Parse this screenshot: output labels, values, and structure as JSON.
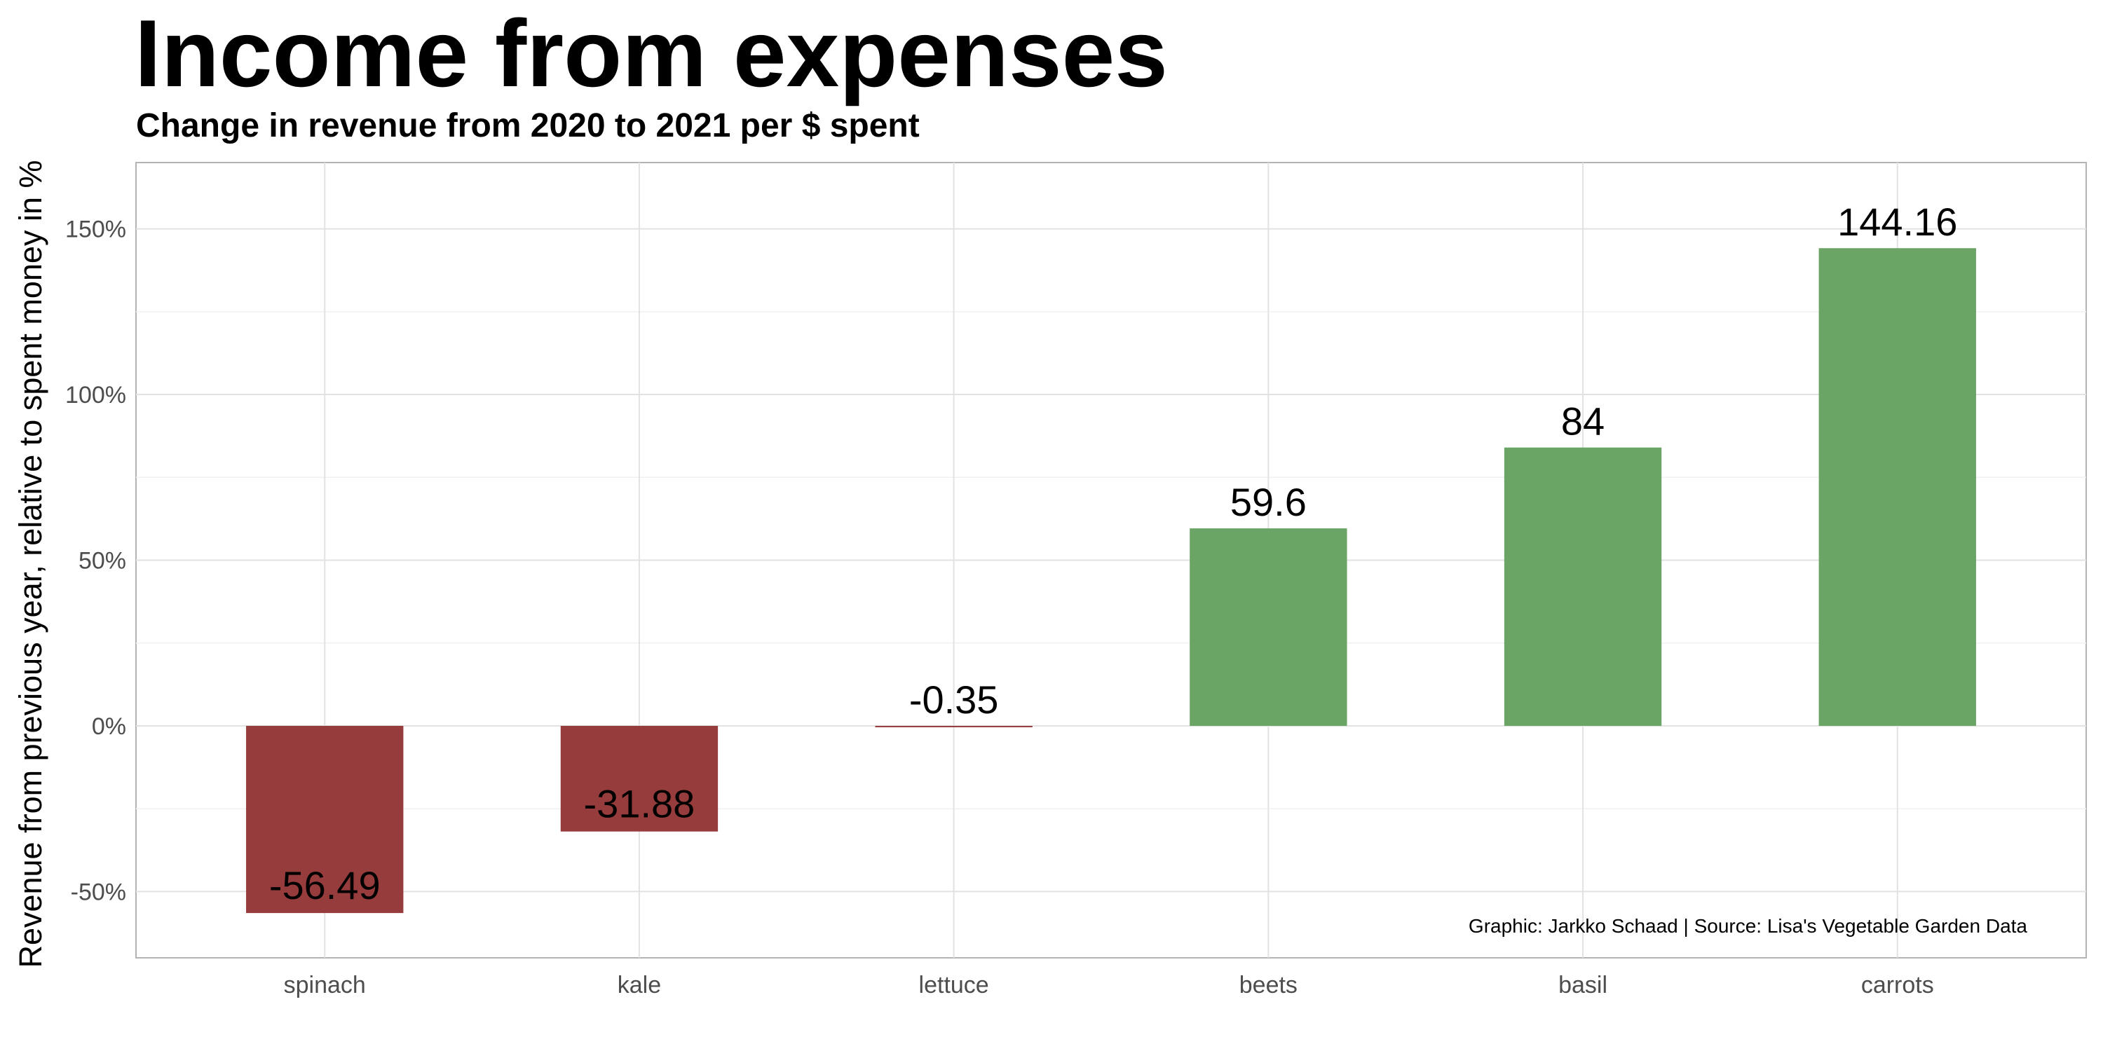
{
  "chart_data": {
    "type": "bar",
    "title": "Income from expenses",
    "subtitle": "Change in revenue from 2020 to 2021 per $ spent",
    "xlabel": "",
    "ylabel": "Revenue from previous year, relative to spent money in %",
    "categories": [
      "spinach",
      "kale",
      "lettuce",
      "beets",
      "basil",
      "carrots"
    ],
    "values": [
      -56.49,
      -31.88,
      -0.35,
      59.6,
      84,
      144.16
    ],
    "value_labels": [
      "-56.49",
      "-31.88",
      "-0.35",
      "59.6",
      "84",
      "144.16"
    ],
    "ylim": [
      -70,
      170
    ],
    "y_ticks": [
      -50,
      0,
      50,
      100,
      150
    ],
    "y_tick_labels": [
      "-50%",
      "0%",
      "50%",
      "100%",
      "150%"
    ],
    "grid": true,
    "colors": {
      "negative": "#963c3c",
      "positive": "#6aa565"
    },
    "caption": "Graphic: Jarkko Schaad | Source: Lisa's Vegetable Garden Data"
  }
}
